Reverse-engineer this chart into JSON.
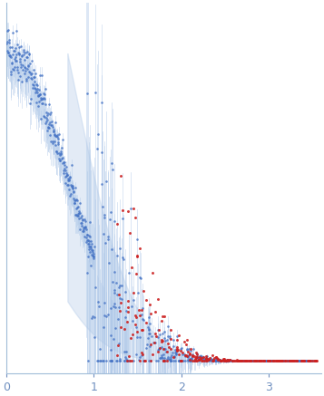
{
  "xlim": [
    0,
    3.6
  ],
  "x_ticks": [
    0,
    1,
    2,
    3
  ],
  "dot_color_blue": "#4472C4",
  "dot_color_red": "#CC2222",
  "error_color": "#AFC8E8",
  "background_color": "#FFFFFF",
  "figsize": [
    3.57,
    4.37
  ],
  "dpi": 100,
  "seed": 42,
  "spine_color": "#A0BCD8",
  "tick_color": "#7090C0"
}
